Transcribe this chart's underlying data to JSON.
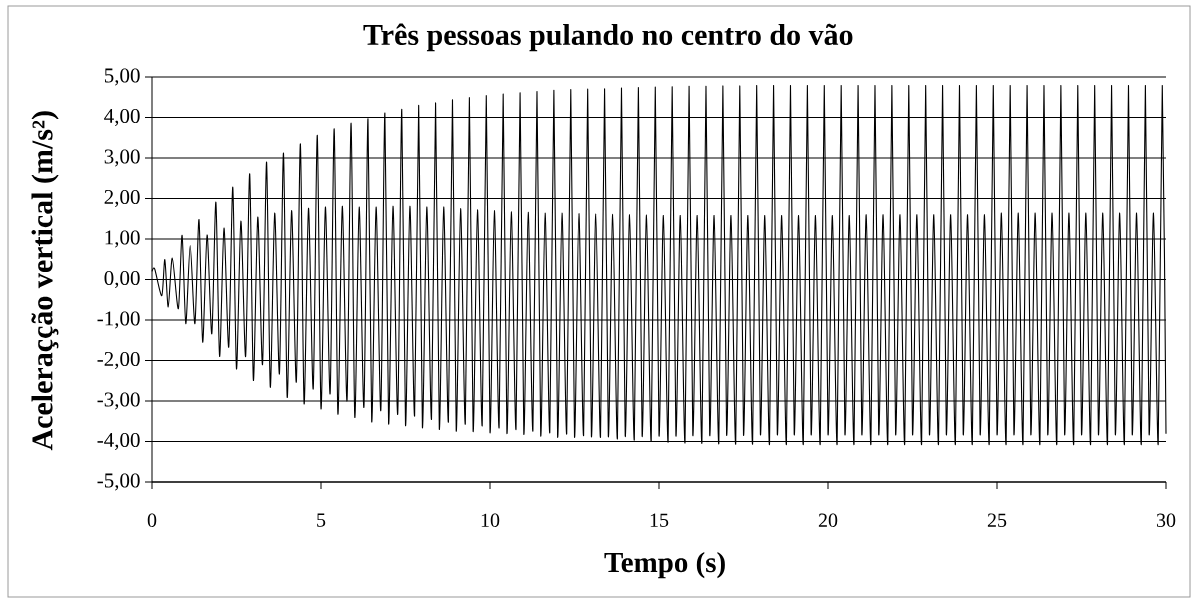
{
  "chart_data": {
    "type": "line",
    "title": "Três pessoas pulando no centro do vão",
    "xlabel": "Tempo (s)",
    "ylabel": "Aceleraçção vertical (m/s²)",
    "x": [
      0,
      0.08,
      0.29,
      0.38,
      0.48,
      0.6,
      0.78,
      0.89,
      1.0,
      1.13,
      1.27,
      1.39,
      1.5,
      1.63,
      1.77,
      1.89,
      2.0,
      2.13,
      2.27,
      2.39,
      2.5,
      2.63,
      2.77,
      2.89,
      3.0,
      3.13,
      3.27,
      3.39,
      3.5,
      3.63,
      3.77,
      3.89,
      4.0,
      4.13,
      4.27,
      4.39,
      4.5,
      4.63,
      4.77,
      4.89,
      5.0,
      5.13,
      5.27,
      5.39,
      5.5,
      5.63,
      5.77,
      5.89,
      6.0,
      6.13,
      6.27,
      6.39,
      6.5,
      6.63,
      6.77,
      6.89,
      7.0,
      7.13,
      7.27,
      7.39,
      7.5,
      7.63,
      7.77,
      7.89,
      8.0,
      8.13,
      8.27,
      8.39,
      8.5,
      8.63,
      8.77,
      8.89,
      9.0,
      9.13,
      9.27,
      9.39,
      9.5,
      9.63,
      9.77,
      9.89,
      10.0,
      10.13,
      10.27,
      10.39,
      10.5,
      10.63,
      10.77,
      10.89,
      11.0,
      11.13,
      11.27,
      11.39,
      11.5,
      11.63,
      11.77,
      11.89,
      12.0,
      12.13,
      12.27,
      12.39,
      12.5,
      12.63,
      12.77,
      12.89,
      13.0,
      13.13,
      13.27,
      13.39,
      13.5,
      13.63,
      13.77,
      13.89,
      14.0,
      14.13,
      14.27,
      14.39,
      14.5,
      14.63,
      14.77,
      14.89,
      15.0,
      15.13,
      15.27,
      15.39,
      15.5,
      15.63,
      15.77,
      15.89,
      16.0,
      16.13,
      16.27,
      16.39,
      16.5,
      16.63,
      16.77,
      16.89,
      17.0,
      17.13,
      17.27,
      17.39,
      17.5,
      17.63,
      17.77,
      17.89,
      18.0,
      18.13,
      18.27,
      18.39,
      18.5,
      18.63,
      18.77,
      18.89,
      19.0,
      19.13,
      19.27,
      19.39,
      19.5,
      19.63,
      19.77,
      19.89,
      20.0,
      20.13,
      20.27,
      20.39,
      20.5,
      20.63,
      20.77,
      20.89,
      21.0,
      21.13,
      21.27,
      21.39,
      21.5,
      21.63,
      21.77,
      21.89,
      22.0,
      22.13,
      22.27,
      22.39,
      22.5,
      22.63,
      22.77,
      22.89,
      23.0,
      23.13,
      23.27,
      23.39,
      23.5,
      23.63,
      23.77,
      23.89,
      24.0,
      24.13,
      24.27,
      24.39,
      24.5,
      24.63,
      24.77,
      24.89,
      25.0,
      25.13,
      25.27,
      25.39,
      25.5,
      25.63,
      25.77,
      25.89,
      26.0,
      26.13,
      26.27,
      26.39,
      26.5,
      26.63,
      26.77,
      26.89,
      27.0,
      27.13,
      27.27,
      27.39,
      27.5,
      27.63,
      27.77,
      27.89,
      28.0,
      28.13,
      28.27,
      28.39,
      28.5,
      28.63,
      28.77,
      28.89,
      29.0,
      29.13,
      29.27,
      29.39,
      29.5,
      29.63,
      29.77,
      29.89,
      30.0
    ],
    "series": [
      {
        "color": "#000000",
        "values": [
          0.2,
          0.26,
          -0.4,
          0.49,
          -0.68,
          0.53,
          -0.72,
          1.09,
          -1.09,
          0.84,
          -1.09,
          1.48,
          -1.55,
          1.1,
          -1.34,
          1.91,
          -1.9,
          1.27,
          -1.67,
          2.28,
          -2.21,
          1.44,
          -1.9,
          2.61,
          -2.49,
          1.54,
          -2.1,
          2.9,
          -2.66,
          1.64,
          -2.33,
          3.12,
          -2.91,
          1.7,
          -2.53,
          3.35,
          -3.07,
          1.76,
          -2.7,
          3.56,
          -3.19,
          1.79,
          -2.82,
          3.72,
          -3.32,
          1.81,
          -2.99,
          3.86,
          -3.4,
          1.79,
          -3.15,
          3.97,
          -3.51,
          1.79,
          -3.23,
          4.11,
          -3.56,
          1.81,
          -3.32,
          4.2,
          -3.6,
          1.81,
          -3.36,
          4.3,
          -3.65,
          1.79,
          -3.44,
          4.36,
          -3.69,
          1.79,
          -3.51,
          4.44,
          -3.73,
          1.75,
          -3.56,
          4.49,
          -3.74,
          1.72,
          -3.6,
          4.54,
          -3.77,
          1.7,
          -3.65,
          4.58,
          -3.79,
          1.67,
          -3.69,
          4.61,
          -3.81,
          1.66,
          -3.73,
          4.64,
          -3.85,
          1.64,
          -3.77,
          4.67,
          -3.88,
          1.64,
          -3.8,
          4.69,
          -3.88,
          1.63,
          -3.84,
          4.7,
          -3.87,
          1.62,
          -3.88,
          4.71,
          -3.87,
          1.61,
          -3.92,
          4.73,
          -3.86,
          1.6,
          -3.95,
          4.74,
          -3.86,
          1.59,
          -3.98,
          4.75,
          -3.85,
          1.58,
          -4.0,
          4.76,
          -3.85,
          1.58,
          -4.02,
          4.77,
          -3.84,
          1.58,
          -4.03,
          4.77,
          -3.84,
          1.58,
          -4.04,
          4.78,
          -3.83,
          1.58,
          -4.05,
          4.78,
          -3.83,
          1.58,
          -4.05,
          4.79,
          -3.82,
          1.58,
          -4.06,
          4.79,
          -3.82,
          1.58,
          -4.06,
          4.79,
          -3.82,
          1.58,
          -4.06,
          4.79,
          -3.82,
          1.58,
          -4.06,
          4.79,
          -3.82,
          1.58,
          -4.06,
          4.79,
          -3.82,
          1.58,
          -4.06,
          4.79,
          -3.82,
          1.6,
          -4.06,
          4.79,
          -3.82,
          1.6,
          -4.06,
          4.79,
          -3.82,
          1.6,
          -4.06,
          4.79,
          -3.82,
          1.6,
          -4.06,
          4.79,
          -3.82,
          1.6,
          -4.06,
          4.79,
          -3.82,
          1.6,
          -4.06,
          4.79,
          -3.82,
          1.6,
          -4.06,
          4.79,
          -3.82,
          1.6,
          -4.06,
          4.79,
          -3.82,
          1.64,
          -4.06,
          4.79,
          -3.82,
          1.64,
          -4.06,
          4.79,
          -3.82,
          1.64,
          -4.06,
          4.79,
          -3.82,
          1.64,
          -4.06,
          4.79,
          -3.82,
          1.64,
          -4.06,
          4.79,
          -3.82,
          1.64,
          -4.06,
          4.79,
          -3.82,
          1.64,
          -4.06,
          4.79,
          -3.82,
          1.64,
          -4.06,
          4.79,
          -3.82,
          1.64,
          -4.06,
          4.79,
          -3.82,
          1.64,
          -4.06,
          4.79,
          -3.81
        ]
      }
    ],
    "xlim": [
      0,
      30
    ],
    "ylim": [
      -5,
      5
    ],
    "xticks": [
      0,
      5,
      10,
      15,
      20,
      25,
      30
    ],
    "yticks": [
      {
        "value": -5,
        "label": "-5,00"
      },
      {
        "value": -4,
        "label": "-4,00"
      },
      {
        "value": -3,
        "label": "-3,00"
      },
      {
        "value": -2,
        "label": "-2,00"
      },
      {
        "value": -1,
        "label": "-1,00"
      },
      {
        "value": 0,
        "label": "0,00"
      },
      {
        "value": 1,
        "label": "1,00"
      },
      {
        "value": 2,
        "label": "2,00"
      },
      {
        "value": 3,
        "label": "3,00"
      },
      {
        "value": 4,
        "label": "4,00"
      },
      {
        "value": 5,
        "label": "5,00"
      }
    ],
    "grid": "y",
    "line_style": "solid"
  }
}
